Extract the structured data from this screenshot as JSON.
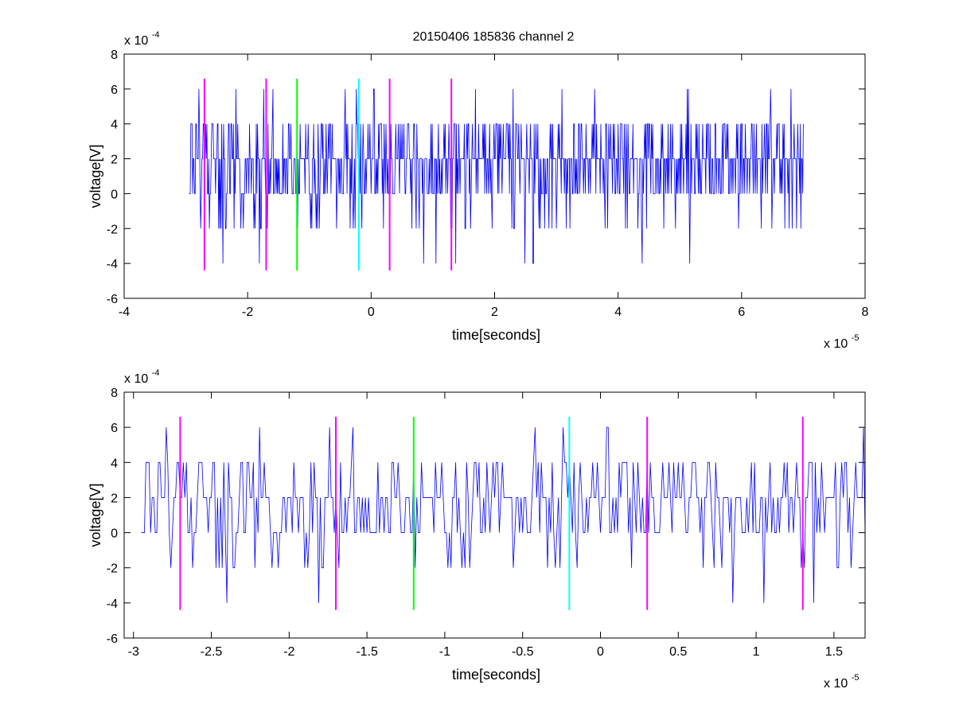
{
  "figure": {
    "title": "20150406 185836 channel 2",
    "background": "#ffffff"
  },
  "chart_data": [
    {
      "type": "line",
      "title": "20150406 185836 channel 2",
      "xlabel": "time[seconds]",
      "ylabel": "voltage[V]",
      "x_exponent_label": "x 10",
      "x_exponent": "-5",
      "y_exponent_label": "x 10",
      "y_exponent": "-4",
      "xlim": [
        -4e-05,
        8e-05
      ],
      "ylim": [
        -0.0006,
        0.0008
      ],
      "x_scale": 1e-05,
      "y_scale": 0.0001,
      "x_ticks": [
        -4,
        -2,
        0,
        2,
        4,
        6,
        8
      ],
      "y_ticks": [
        -6,
        -4,
        -2,
        0,
        2,
        4,
        6,
        8
      ],
      "grid": false,
      "series": [
        {
          "color": "#0000ff",
          "x_start": -2.95e-05,
          "x_end": 7e-05,
          "sample_step": 1e-07,
          "quantization_step": 0.0002,
          "value_range": [
            -0.0004,
            0.0006
          ]
        }
      ],
      "markers": [
        {
          "x": -2.7e-05,
          "ymin": -0.00044,
          "ymax": 0.00066,
          "color": "#ff00ff"
        },
        {
          "x": -1.7e-05,
          "ymin": -0.00044,
          "ymax": 0.00066,
          "color": "#ff00ff"
        },
        {
          "x": -1.2e-05,
          "ymin": -0.00044,
          "ymax": 0.00066,
          "color": "#00ff00"
        },
        {
          "x": -2e-06,
          "ymin": -0.00044,
          "ymax": 0.00066,
          "color": "#00ffff"
        },
        {
          "x": 3e-06,
          "ymin": -0.00044,
          "ymax": 0.00066,
          "color": "#ff00ff"
        },
        {
          "x": 1.3e-05,
          "ymin": -0.00044,
          "ymax": 0.00066,
          "color": "#ff00ff"
        }
      ]
    },
    {
      "type": "line",
      "title": "",
      "xlabel": "time[seconds]",
      "ylabel": "voltage[V]",
      "x_exponent_label": "x 10",
      "x_exponent": "-5",
      "y_exponent_label": "x 10",
      "y_exponent": "-4",
      "xlim": [
        -3.06e-05,
        1.7e-05
      ],
      "ylim": [
        -0.0006,
        0.0008
      ],
      "x_scale": 1e-05,
      "y_scale": 0.0001,
      "x_ticks": [
        -3,
        -2.5,
        -2,
        -1.5,
        -1,
        -0.5,
        0,
        0.5,
        1,
        1.5
      ],
      "y_ticks": [
        -6,
        -4,
        -2,
        0,
        2,
        4,
        6,
        8
      ],
      "grid": false,
      "series": [
        {
          "color": "#0000ff",
          "x_start": -2.95e-05,
          "x_end": 1.7e-05,
          "sample_step": 1e-07,
          "quantization_step": 0.0002,
          "value_range": [
            -0.0004,
            0.0006
          ]
        }
      ],
      "markers": [
        {
          "x": -2.7e-05,
          "ymin": -0.00044,
          "ymax": 0.00066,
          "color": "#ff00ff"
        },
        {
          "x": -1.7e-05,
          "ymin": -0.00044,
          "ymax": 0.00066,
          "color": "#ff00ff"
        },
        {
          "x": -1.2e-05,
          "ymin": -0.00044,
          "ymax": 0.00066,
          "color": "#00ff00"
        },
        {
          "x": -2e-06,
          "ymin": -0.00044,
          "ymax": 0.00066,
          "color": "#00ffff"
        },
        {
          "x": 3e-06,
          "ymin": -0.00044,
          "ymax": 0.00066,
          "color": "#ff00ff"
        },
        {
          "x": 1.3e-05,
          "ymin": -0.00044,
          "ymax": 0.00066,
          "color": "#ff00ff"
        }
      ]
    }
  ]
}
